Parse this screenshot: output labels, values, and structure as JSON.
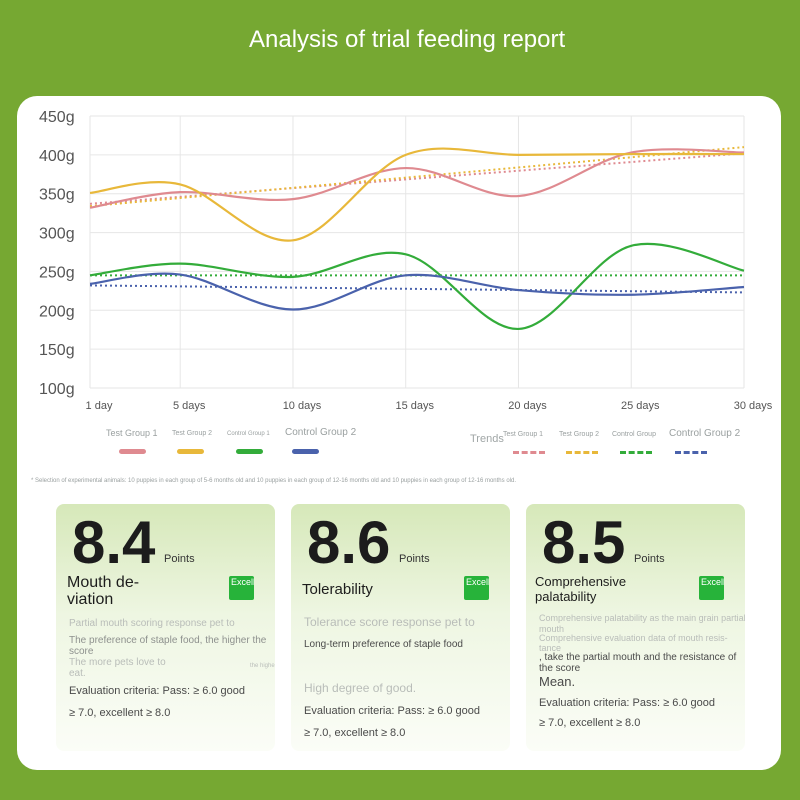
{
  "title": "Analysis of trial feeding report",
  "chart_data": {
    "type": "line",
    "x": [
      1,
      5,
      10,
      15,
      20,
      25,
      30
    ],
    "x_tick_labels": [
      "1 day",
      "5 days",
      "10 days",
      "15 days",
      "20 days",
      "25 days",
      "30 days"
    ],
    "y_tick_labels": [
      "100g",
      "150g",
      "200g",
      "250g",
      "300g",
      "350g",
      "400g",
      "450g"
    ],
    "ylim": [
      100,
      450
    ],
    "grid": true,
    "series": [
      {
        "name": "Test Group 1",
        "color": "#df8a90",
        "values": [
          332,
          352,
          343,
          383,
          347,
          403,
          403
        ]
      },
      {
        "name": "Test Group 2",
        "color": "#e8b83a",
        "values": [
          351,
          362,
          290,
          400,
          400,
          401,
          401
        ]
      },
      {
        "name": "Control Group 1",
        "color": "#33ac3a",
        "values": [
          245,
          260,
          243,
          272,
          176,
          283,
          251
        ]
      },
      {
        "name": "Control Group 2",
        "color": "#4a62ac",
        "values": [
          234,
          246,
          201,
          245,
          226,
          220,
          230
        ]
      }
    ],
    "trend_label": "Trends",
    "trends": [
      {
        "name": "Test Group 1",
        "color": "#df8a90",
        "start": 337,
        "end": 402
      },
      {
        "name": "Test Group 2",
        "color": "#e8b83a",
        "start": 334,
        "end": 410
      },
      {
        "name": "Control Group 1",
        "color": "#33ac3a",
        "start": 245,
        "end": 245
      },
      {
        "name": "Control Group 2",
        "color": "#4a62ac",
        "start": 232,
        "end": 223
      }
    ],
    "legend": [
      "Test Group 1",
      "Test Group 2",
      "Control Group 1",
      "Control Group 2"
    ],
    "trend_legend": [
      "Test Group 1",
      "Test Group 2",
      "Control Group",
      "Control Group 2"
    ]
  },
  "footnote": "* Selection of experimental animals: 10 puppies in each group of 5-6 months old and 10 puppies in each group of 12-16 months old and 10 puppies in each group of 12-16 months old.",
  "cards": [
    {
      "score": "8.4",
      "points": "Points",
      "title_line1": "Mouth de-",
      "title_line2": "viation",
      "badge": "Excellent",
      "lines": [
        "Partial mouth scoring response pet to",
        "The preference of staple food, the higher the",
        "score",
        "The more pets love to",
        "eat.",
        "the higher the score, the higher the long-term consumption of pets",
        "Evaluation criteria: Pass: ≥ 6.0 good",
        "≥ 7.0, excellent ≥ 8.0"
      ]
    },
    {
      "score": "8.6",
      "points": "Points",
      "title_line1": "Tolerability",
      "title_line2": "",
      "badge": "Excellent",
      "lines": [
        "Tolerance score response pet to",
        "Long-term preference of staple food",
        "High degree of good.",
        "Evaluation criteria: Pass: ≥ 6.0 good",
        "≥ 7.0, excellent ≥ 8.0"
      ]
    },
    {
      "score": "8.5",
      "points": "Points",
      "title_line1": "Comprehensive",
      "title_line2": "palatability",
      "badge": "Excellent",
      "lines": [
        "Comprehensive palatability as the main grain partial",
        "mouth",
        "Comprehensive evaluation data of mouth resis-",
        "tance",
        ", take the partial mouth and the resistance of",
        "the score",
        "Mean.",
        "Evaluation criteria: Pass: ≥ 6.0 good",
        "≥ 7.0, excellent ≥ 8.0"
      ]
    }
  ]
}
